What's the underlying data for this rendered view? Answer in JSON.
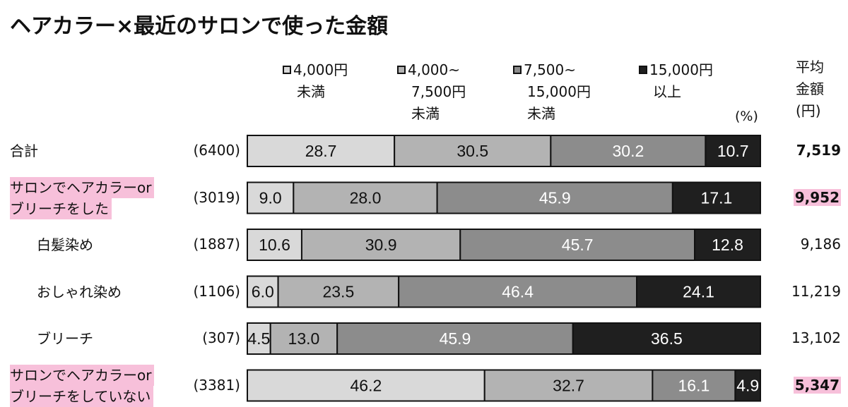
{
  "chart_data": {
    "type": "bar",
    "orientation": "horizontal-stacked-100",
    "title": "ヘアカラー×最近のサロンで使った金額",
    "unit_label": "(%)",
    "average_header": [
      "平均",
      "金額",
      "(円)"
    ],
    "series": [
      {
        "name_lines": [
          "4,000円",
          "未満"
        ],
        "color": "#d9d9d9",
        "text_color": "#111111"
      },
      {
        "name_lines": [
          "4,000~",
          "7,500円",
          "未満"
        ],
        "color": "#b3b3b3",
        "text_color": "#111111"
      },
      {
        "name_lines": [
          "7,500~",
          "15,000円",
          "未満"
        ],
        "color": "#8c8c8c",
        "text_color": "#ffffff"
      },
      {
        "name_lines": [
          "15,000円",
          "以上"
        ],
        "color": "#1f1f1f",
        "text_color": "#ffffff"
      }
    ],
    "rows": [
      {
        "label_lines": [
          "合計"
        ],
        "highlight": false,
        "indent": false,
        "count": "(6400)",
        "values": [
          28.7,
          30.5,
          30.2,
          10.7
        ],
        "labels": [
          "28.7",
          "30.5",
          "30.2",
          "10.7"
        ],
        "average": "7,519",
        "average_bold": true,
        "average_highlight": false
      },
      {
        "label_lines": [
          "サロンでヘアカラーor",
          "ブリーチをした"
        ],
        "highlight": true,
        "indent": false,
        "count": "(3019)",
        "values": [
          9.0,
          28.0,
          45.9,
          17.1
        ],
        "labels": [
          "9.0",
          "28.0",
          "45.9",
          "17.1"
        ],
        "average": "9,952",
        "average_bold": true,
        "average_highlight": true
      },
      {
        "label_lines": [
          "白髪染め"
        ],
        "highlight": false,
        "indent": true,
        "count": "(1887)",
        "values": [
          10.6,
          30.9,
          45.7,
          12.8
        ],
        "labels": [
          "10.6",
          "30.9",
          "45.7",
          "12.8"
        ],
        "average": "9,186",
        "average_bold": false,
        "average_highlight": false
      },
      {
        "label_lines": [
          "おしゃれ染め"
        ],
        "highlight": false,
        "indent": true,
        "count": "(1106)",
        "values": [
          6.0,
          23.5,
          46.4,
          24.1
        ],
        "labels": [
          "6.0",
          "23.5",
          "46.4",
          "24.1"
        ],
        "average": "11,219",
        "average_bold": false,
        "average_highlight": false
      },
      {
        "label_lines": [
          "ブリーチ"
        ],
        "highlight": false,
        "indent": true,
        "count": "(307)",
        "values": [
          4.5,
          13.0,
          45.9,
          36.5
        ],
        "labels": [
          "4.5",
          "13.0",
          "45.9",
          "36.5"
        ],
        "average": "13,102",
        "average_bold": false,
        "average_highlight": false
      },
      {
        "label_lines": [
          "サロンでヘアカラーor",
          "ブリーチをしていない"
        ],
        "highlight": true,
        "indent": false,
        "count": "(3381)",
        "values": [
          46.2,
          32.7,
          16.1,
          4.9
        ],
        "labels": [
          "46.2",
          "32.7",
          "16.1",
          "4.9"
        ],
        "average": "5,347",
        "average_bold": true,
        "average_highlight": true
      }
    ]
  }
}
